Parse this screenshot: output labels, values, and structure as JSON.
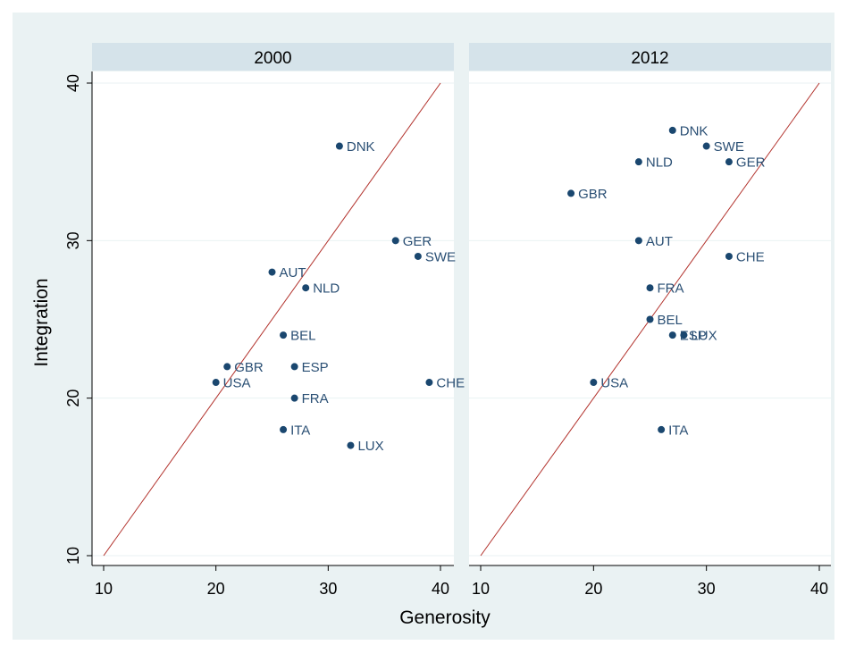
{
  "chart_data": {
    "type": "scatter",
    "xlabel": "Generosity",
    "ylabel": "Integration",
    "xlim": [
      10,
      40
    ],
    "ylim": [
      10,
      40
    ],
    "xticks": [
      "10",
      "20",
      "30",
      "40"
    ],
    "yticks": [
      "10",
      "20",
      "30",
      "40"
    ],
    "reference_line": {
      "from": [
        10,
        10
      ],
      "to": [
        40,
        40
      ]
    },
    "colors": {
      "background": "#eaf2f3",
      "panel": "#ffffff",
      "panel_header": "#d5e3ea",
      "marker": "#1a476f",
      "label": "#2a4f74",
      "reference_line": "#b2322c",
      "grid": "#eaf2f3"
    },
    "panels": [
      {
        "title": "2000",
        "points": [
          {
            "label": "DNK",
            "x": 31,
            "y": 36
          },
          {
            "label": "GER",
            "x": 36,
            "y": 30
          },
          {
            "label": "SWE",
            "x": 38,
            "y": 29
          },
          {
            "label": "AUT",
            "x": 25,
            "y": 28
          },
          {
            "label": "NLD",
            "x": 28,
            "y": 27
          },
          {
            "label": "BEL",
            "x": 26,
            "y": 24
          },
          {
            "label": "GBR",
            "x": 21,
            "y": 22
          },
          {
            "label": "ESP",
            "x": 27,
            "y": 22
          },
          {
            "label": "USA",
            "x": 20,
            "y": 21
          },
          {
            "label": "CHE",
            "x": 39,
            "y": 21
          },
          {
            "label": "FRA",
            "x": 27,
            "y": 20
          },
          {
            "label": "ITA",
            "x": 26,
            "y": 18
          },
          {
            "label": "LUX",
            "x": 32,
            "y": 17
          }
        ]
      },
      {
        "title": "2012",
        "points": [
          {
            "label": "DNK",
            "x": 27,
            "y": 37
          },
          {
            "label": "SWE",
            "x": 30,
            "y": 36
          },
          {
            "label": "NLD",
            "x": 24,
            "y": 35
          },
          {
            "label": "GER",
            "x": 32,
            "y": 35
          },
          {
            "label": "GBR",
            "x": 18,
            "y": 33
          },
          {
            "label": "AUT",
            "x": 24,
            "y": 30
          },
          {
            "label": "CHE",
            "x": 32,
            "y": 29
          },
          {
            "label": "FRA",
            "x": 25,
            "y": 27
          },
          {
            "label": "BEL",
            "x": 25,
            "y": 25
          },
          {
            "label": "ESP",
            "x": 27,
            "y": 24
          },
          {
            "label": "LUX",
            "x": 28,
            "y": 24
          },
          {
            "label": "USA",
            "x": 20,
            "y": 21
          },
          {
            "label": "ITA",
            "x": 26,
            "y": 18
          }
        ]
      }
    ]
  }
}
